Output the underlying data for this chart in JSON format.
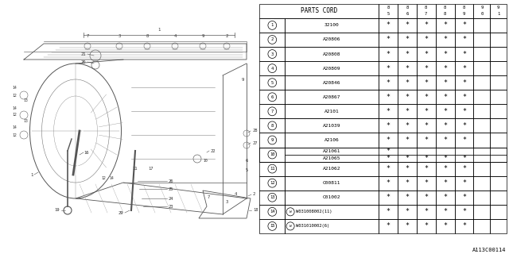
{
  "title": "A113C00114",
  "header": "PARTS CORD",
  "col_headers": [
    "85",
    "86",
    "87",
    "88",
    "89",
    "90",
    "91"
  ],
  "parts": [
    {
      "num": 1,
      "code": "32100",
      "stars": [
        1,
        1,
        1,
        1,
        1,
        0,
        0
      ]
    },
    {
      "num": 2,
      "code": "A20806",
      "stars": [
        1,
        1,
        1,
        1,
        1,
        0,
        0
      ]
    },
    {
      "num": 3,
      "code": "A20808",
      "stars": [
        1,
        1,
        1,
        1,
        1,
        0,
        0
      ]
    },
    {
      "num": 4,
      "code": "A20809",
      "stars": [
        1,
        1,
        1,
        1,
        1,
        0,
        0
      ]
    },
    {
      "num": 5,
      "code": "A20846",
      "stars": [
        1,
        1,
        1,
        1,
        1,
        0,
        0
      ]
    },
    {
      "num": 6,
      "code": "A20867",
      "stars": [
        1,
        1,
        1,
        1,
        1,
        0,
        0
      ]
    },
    {
      "num": 7,
      "code": "A2101",
      "stars": [
        1,
        1,
        1,
        1,
        1,
        0,
        0
      ]
    },
    {
      "num": 8,
      "code": "A21039",
      "stars": [
        1,
        1,
        1,
        1,
        1,
        0,
        0
      ]
    },
    {
      "num": 9,
      "code": "A2106",
      "stars": [
        1,
        1,
        1,
        1,
        1,
        0,
        0
      ]
    },
    {
      "num": "10a",
      "num_display": 10,
      "code": "A21061",
      "stars": [
        1,
        0,
        0,
        0,
        0,
        0,
        0
      ],
      "span_start": true
    },
    {
      "num": "10b",
      "num_display": 10,
      "code": "A21065",
      "stars": [
        1,
        1,
        1,
        1,
        1,
        0,
        0
      ],
      "span_end": true
    },
    {
      "num": 11,
      "code": "A21062",
      "stars": [
        1,
        1,
        1,
        1,
        1,
        0,
        0
      ]
    },
    {
      "num": 12,
      "code": "C00811",
      "stars": [
        1,
        1,
        1,
        1,
        1,
        0,
        0
      ]
    },
    {
      "num": 13,
      "code": "C01002",
      "stars": [
        1,
        1,
        1,
        1,
        1,
        0,
        0
      ]
    },
    {
      "num": 14,
      "code": "W031008002(11)",
      "stars": [
        1,
        1,
        1,
        1,
        1,
        0,
        0
      ],
      "w": true
    },
    {
      "num": 15,
      "code": "W031010002(6)",
      "stars": [
        1,
        1,
        1,
        1,
        1,
        0,
        0
      ],
      "w": true
    }
  ],
  "bg_color": "#ffffff"
}
